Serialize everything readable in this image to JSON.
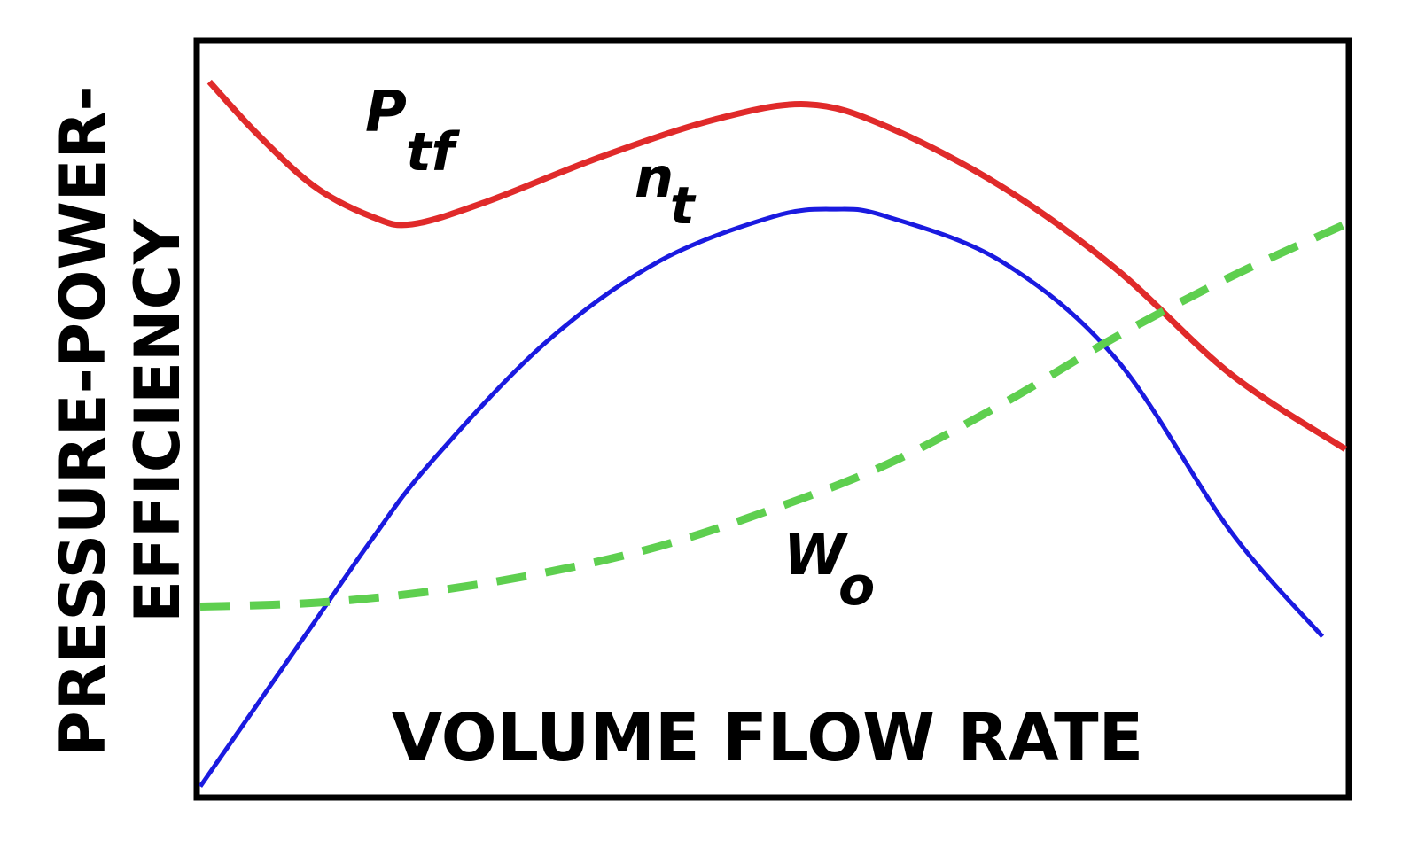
{
  "chart_data": {
    "type": "line",
    "title": "",
    "xlabel": "VOLUME FLOW RATE",
    "ylabel_line1": "PRESSURE-POWER-",
    "ylabel_line2": "EFFICIENCY",
    "xlim": [
      0,
      100
    ],
    "ylim": [
      0,
      100
    ],
    "grid": false,
    "legend": "none",
    "x_ticks_shown": false,
    "y_ticks_shown": false,
    "series": [
      {
        "label_main": "P",
        "label_sub": "tf",
        "color": "#e02a2a",
        "style": "solid",
        "points": [
          [
            0.8,
            95
          ],
          [
            5,
            88
          ],
          [
            10,
            81
          ],
          [
            15,
            77
          ],
          [
            18.5,
            76
          ],
          [
            25,
            79
          ],
          [
            35,
            85
          ],
          [
            45,
            90
          ],
          [
            53,
            92
          ],
          [
            60,
            89
          ],
          [
            70,
            81
          ],
          [
            80,
            70
          ],
          [
            90,
            56
          ],
          [
            100,
            46
          ]
        ]
      },
      {
        "label_main": "n",
        "label_sub": "t",
        "color": "#1a1ae0",
        "style": "solid",
        "points": [
          [
            0,
            1
          ],
          [
            5,
            12
          ],
          [
            10,
            23
          ],
          [
            15,
            34
          ],
          [
            20,
            44
          ],
          [
            30,
            60
          ],
          [
            40,
            71
          ],
          [
            50,
            77
          ],
          [
            55.5,
            78
          ],
          [
            60,
            77
          ],
          [
            70,
            71
          ],
          [
            80,
            58
          ],
          [
            90,
            35
          ],
          [
            98,
            21
          ]
        ]
      },
      {
        "label_main": "W",
        "label_sub": "o",
        "color": "#5ecf4f",
        "style": "dashed",
        "points": [
          [
            0,
            25
          ],
          [
            10,
            25.5
          ],
          [
            20,
            27
          ],
          [
            30,
            29.5
          ],
          [
            40,
            33
          ],
          [
            50,
            38
          ],
          [
            60,
            44
          ],
          [
            70,
            52
          ],
          [
            80,
            61
          ],
          [
            90,
            69
          ],
          [
            100,
            76
          ]
        ]
      }
    ]
  }
}
